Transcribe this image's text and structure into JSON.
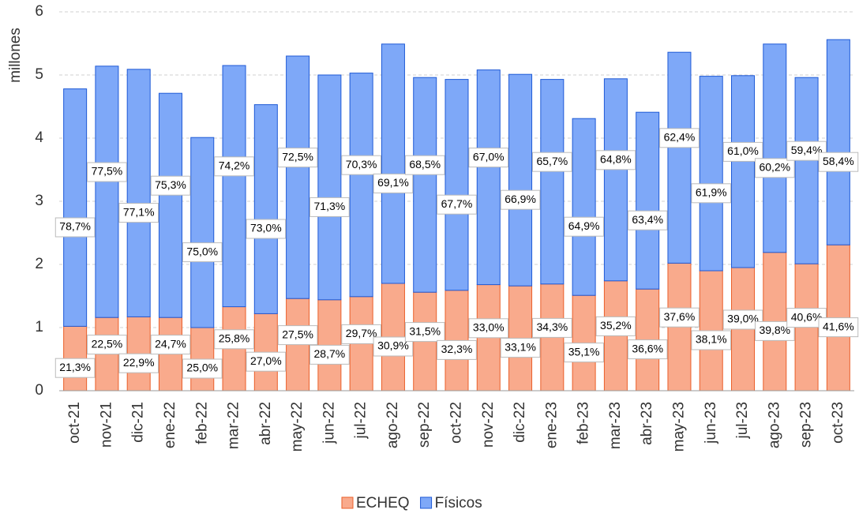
{
  "chart_data": {
    "type": "stacked_bar",
    "y_label": "millones",
    "categories": [
      "oct-21",
      "nov-21",
      "dic-21",
      "ene-22",
      "feb-22",
      "mar-22",
      "abr-22",
      "may-22",
      "jun-22",
      "jul-22",
      "ago-22",
      "sep-22",
      "oct-22",
      "nov-22",
      "dic-22",
      "ene-23",
      "feb-23",
      "mar-23",
      "abr-23",
      "may-23",
      "jun-23",
      "jul-23",
      "ago-23",
      "sep-23",
      "oct-23"
    ],
    "series": [
      {
        "name": "ECHEQ",
        "color": "#f9aa8c",
        "edge": "#ea5f2a",
        "values": [
          1.02,
          1.16,
          1.17,
          1.16,
          1.0,
          1.33,
          1.22,
          1.46,
          1.44,
          1.49,
          1.7,
          1.56,
          1.59,
          1.68,
          1.66,
          1.69,
          1.51,
          1.74,
          1.61,
          2.02,
          1.9,
          1.95,
          2.19,
          2.01,
          2.31
        ],
        "share_labels": [
          "21,3%",
          "22,5%",
          "22,9%",
          "24,7%",
          "25,0%",
          "25,8%",
          "27,0%",
          "27,5%",
          "28,7%",
          "29,7%",
          "30,9%",
          "31,5%",
          "32,3%",
          "33,0%",
          "33,1%",
          "34,3%",
          "35,1%",
          "35,2%",
          "36,6%",
          "37,6%",
          "38,1%",
          "39,0%",
          "39,8%",
          "40,6%",
          "41,6%"
        ]
      },
      {
        "name": "Físicos",
        "color": "#7ea8f8",
        "edge": "#1f5ad6",
        "values": [
          3.76,
          3.98,
          3.92,
          3.55,
          3.01,
          3.82,
          3.31,
          3.84,
          3.56,
          3.54,
          3.79,
          3.4,
          3.34,
          3.4,
          3.35,
          3.24,
          2.8,
          3.2,
          2.8,
          3.34,
          3.08,
          3.04,
          3.3,
          2.95,
          3.25
        ],
        "share_labels": [
          "78,7%",
          "77,5%",
          "77,1%",
          "75,3%",
          "75,0%",
          "74,2%",
          "73,0%",
          "72,5%",
          "71,3%",
          "70,3%",
          "69,1%",
          "68,5%",
          "67,7%",
          "67,0%",
          "66,9%",
          "65,7%",
          "64,9%",
          "64,8%",
          "63,4%",
          "62,4%",
          "61,9%",
          "61,0%",
          "60,2%",
          "59,4%",
          "58,4%"
        ]
      }
    ],
    "ylim": [
      0,
      6
    ],
    "yticks": [
      0,
      1,
      2,
      3,
      4,
      5,
      6
    ],
    "grid": true,
    "legend": "bottom"
  }
}
